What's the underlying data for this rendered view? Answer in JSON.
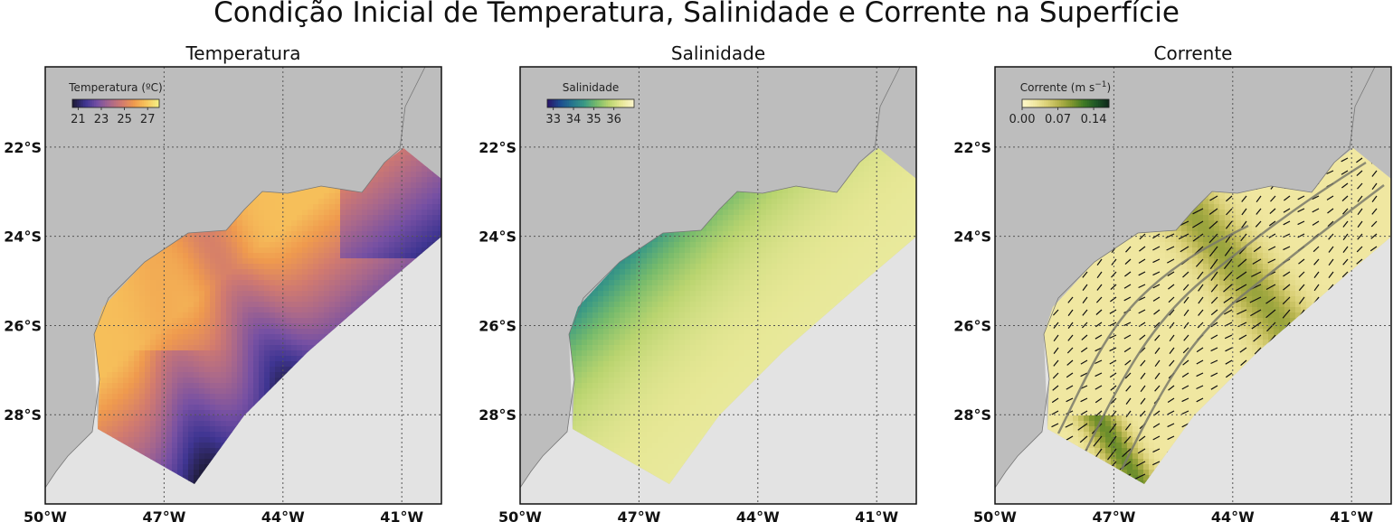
{
  "title": "Condição Inicial de Temperatura, Salinidade e Corrente na Superfície",
  "colors": {
    "land": "#bdbdbd",
    "ocean_outside": "#e3e3e3",
    "grid": "#555555",
    "thermal": [
      "#1f1c3a",
      "#3f3592",
      "#7650a3",
      "#a8678c",
      "#d17a6f",
      "#ef9a4e",
      "#f7c45c",
      "#f4ee83"
    ],
    "haline": [
      "#29186b",
      "#1c4d90",
      "#26768e",
      "#3b9a84",
      "#77bb6b",
      "#b9d46f",
      "#e6e795",
      "#fbf5c8"
    ],
    "speed": [
      "#fdf7c8",
      "#f1e8a2",
      "#d9cf75",
      "#b3b14b",
      "#7f962e",
      "#3f7a24",
      "#1d5726",
      "#102c1c"
    ]
  },
  "chart_data": [
    {
      "type": "heatmap",
      "title": "Temperatura",
      "variable": "temperature",
      "colorbar": {
        "label": "Temperatura (ºC)",
        "ticks": [
          "21",
          "23",
          "25",
          "27"
        ],
        "range": [
          20.5,
          28.0
        ],
        "colormap": "thermal"
      },
      "xticks": [
        "50°W",
        "47°W",
        "44°W",
        "41°W"
      ],
      "yticks": [
        "22°S",
        "24°S",
        "26°S",
        "28°S"
      ],
      "xlim": [
        -50.0,
        -40.0
      ],
      "ylim": [
        -30.0,
        -20.2
      ],
      "grid": true,
      "legend_position": "upper-left",
      "field_description": "warm coastal waters (27 °C) on the shelf near 25–26°S, cooler bands (22–23 °C) offshore"
    },
    {
      "type": "heatmap",
      "title": "Salinidade",
      "variable": "salinity",
      "colorbar": {
        "label": "Salinidade",
        "ticks": [
          "33",
          "34",
          "35",
          "36"
        ],
        "range": [
          32.7,
          37.0
        ],
        "colormap": "haline"
      },
      "xticks": [
        "50°W",
        "47°W",
        "44°W",
        "41°W"
      ],
      "yticks": [
        "22°S",
        "24°S",
        "26°S",
        "28°S"
      ],
      "xlim": [
        -50.0,
        -40.0
      ],
      "ylim": [
        -30.0,
        -20.2
      ],
      "grid": true,
      "legend_position": "upper-left",
      "field_description": "fresher water (~34.5) along the coast, saltier (~36.5) offshore"
    },
    {
      "type": "heatmap",
      "title": "Corrente",
      "variable": "surface current speed",
      "colorbar": {
        "label": "Corrente (m s-1)",
        "ticks": [
          "0.00",
          "0.07",
          "0.14"
        ],
        "range": [
          0.0,
          0.17
        ],
        "colormap": "speed"
      },
      "xticks": [
        "50°W",
        "47°W",
        "44°W",
        "41°W"
      ],
      "yticks": [
        "22°S",
        "24°S",
        "26°S",
        "28°S"
      ],
      "xlim": [
        -50.0,
        -40.0
      ],
      "ylim": [
        -30.0,
        -20.2
      ],
      "grid": true,
      "legend_position": "upper-left",
      "vectors": true,
      "field_description": "weak currents (~0.02 m/s) with quivers showing southwestward flow, stronger bands offshore"
    }
  ]
}
